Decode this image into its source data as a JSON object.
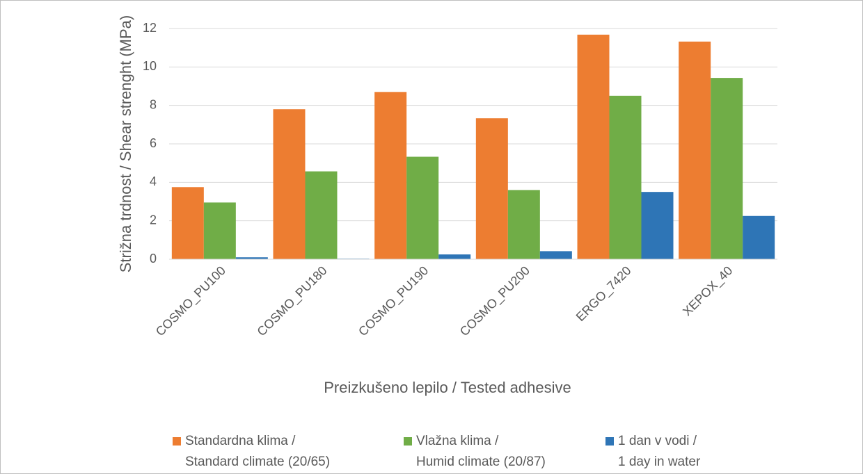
{
  "chart_data": {
    "type": "bar",
    "x_label": "Preizkušeno lepilo / Tested adhesive",
    "y_label": "Strižna trdnost / Shear strenght (MPa)",
    "categories": [
      "COSMO_PU100",
      "COSMO_PU180",
      "COSMO_PU190",
      "COSMO_PU200",
      "ERGO_7420",
      "XEPOX_40"
    ],
    "series": [
      {
        "name": "Standardna klima /\nStandard climate (20/65)",
        "color": "#ed7d31",
        "values": [
          3.75,
          7.8,
          8.7,
          7.33,
          11.68,
          11.32
        ]
      },
      {
        "name": "Vlažna klima /\nHumid climate (20/87)",
        "color": "#70ad47",
        "values": [
          2.95,
          4.57,
          5.33,
          3.6,
          8.5,
          9.43
        ]
      },
      {
        "name": "1 dan v vodi /\n1 day in water",
        "color": "#2e75b6",
        "values": [
          0.1,
          0.03,
          0.25,
          0.42,
          3.5,
          2.25
        ]
      }
    ],
    "ylim": [
      0,
      12
    ],
    "yticks": [
      0,
      2,
      4,
      6,
      8,
      10,
      12
    ],
    "grid": true,
    "legend": "bottom"
  }
}
